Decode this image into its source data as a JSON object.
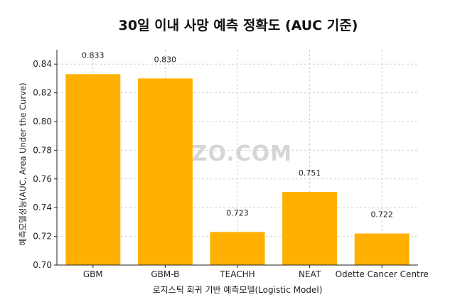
{
  "watermark": "DIZZO.COM",
  "chart_data": {
    "type": "bar",
    "title": "30일 이내 사망 예측 정확도 (AUC 기준)",
    "xlabel": "로지스틱 회귀 기반 예측모델(Logistic Model)",
    "ylabel": "예측모델성능(AUC, Area Under the Curve)",
    "categories": [
      "GBM",
      "GBM-B",
      "TEACHH",
      "NEAT",
      "Odette Cancer Centre"
    ],
    "values": [
      0.833,
      0.83,
      0.723,
      0.751,
      0.722
    ],
    "data_labels": [
      "0.833",
      "0.830",
      "0.723",
      "0.751",
      "0.722"
    ],
    "ylim": [
      0.7,
      0.85
    ],
    "yticks": [
      0.7,
      0.72,
      0.74,
      0.76,
      0.78,
      0.8,
      0.82,
      0.84
    ],
    "ytick_labels": [
      "0.70",
      "0.72",
      "0.74",
      "0.76",
      "0.78",
      "0.80",
      "0.82",
      "0.84"
    ],
    "bar_color": "#FFB000",
    "grid": true
  }
}
